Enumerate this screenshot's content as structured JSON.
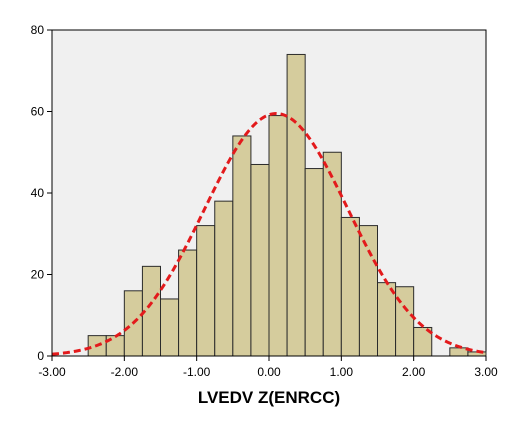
{
  "chart_data": {
    "type": "bar",
    "title": "",
    "xlabel": "LVEDV Z(ENRCC)",
    "ylabel": "",
    "xlim": [
      -3.0,
      3.0
    ],
    "ylim": [
      0,
      80
    ],
    "x_ticks": [
      "-3.00",
      "-2.00",
      "-1.00",
      "0.00",
      "1.00",
      "2.00",
      "3.00"
    ],
    "y_ticks": [
      "0",
      "20",
      "40",
      "60",
      "80"
    ],
    "grid": false,
    "bin_width": 0.25,
    "bins": [
      {
        "x": -2.375,
        "value": 5
      },
      {
        "x": -2.125,
        "value": 5
      },
      {
        "x": -1.875,
        "value": 16
      },
      {
        "x": -1.625,
        "value": 22
      },
      {
        "x": -1.375,
        "value": 14
      },
      {
        "x": -1.125,
        "value": 26
      },
      {
        "x": -0.875,
        "value": 32
      },
      {
        "x": -0.625,
        "value": 38
      },
      {
        "x": -0.375,
        "value": 54
      },
      {
        "x": -0.125,
        "value": 47
      },
      {
        "x": 0.125,
        "value": 59
      },
      {
        "x": 0.375,
        "value": 74
      },
      {
        "x": 0.625,
        "value": 46
      },
      {
        "x": 0.875,
        "value": 50
      },
      {
        "x": 1.125,
        "value": 34
      },
      {
        "x": 1.375,
        "value": 32
      },
      {
        "x": 1.625,
        "value": 18
      },
      {
        "x": 1.875,
        "value": 17
      },
      {
        "x": 2.125,
        "value": 7
      },
      {
        "x": 2.375,
        "value": 0
      },
      {
        "x": 2.625,
        "value": 2
      },
      {
        "x": 2.875,
        "value": 1
      }
    ],
    "normal_curve": {
      "mean": 0.1,
      "sd": 0.99,
      "peak": 59.5
    },
    "colors": {
      "bar_fill": "#d5cc9d",
      "bar_stroke": "#2b2b2b",
      "plot_background": "#f0f0f0",
      "curve": "#e31a1c"
    }
  }
}
